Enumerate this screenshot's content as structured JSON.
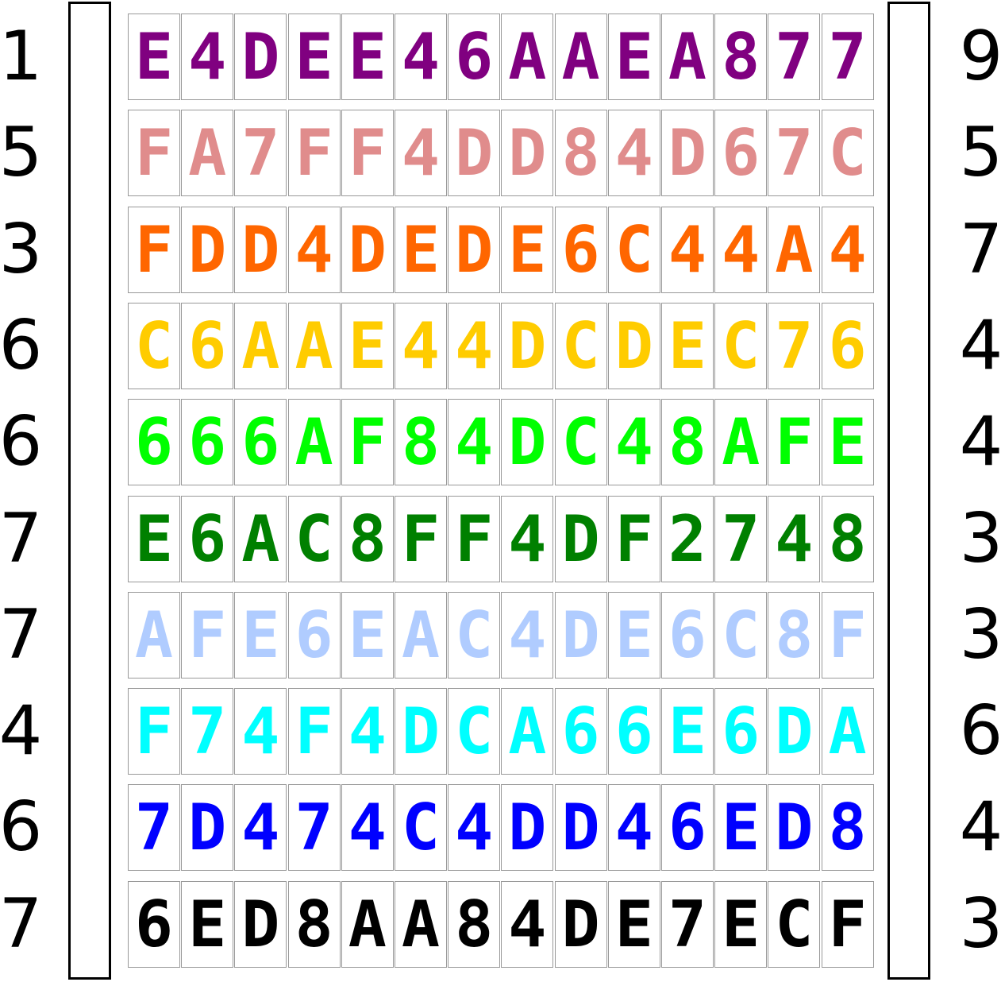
{
  "left_numbers": [
    "1",
    "5",
    "3",
    "6",
    "6",
    "7",
    "7",
    "4",
    "6",
    "7"
  ],
  "right_numbers": [
    "9",
    "5",
    "7",
    "4",
    "4",
    "3",
    "3",
    "6",
    "4",
    "3"
  ],
  "rows": [
    {
      "color": "#800080",
      "chars": [
        "E",
        "4",
        "D",
        "E",
        "E",
        "4",
        "6",
        "A",
        "A",
        "E",
        "A",
        "8",
        "7",
        "7"
      ]
    },
    {
      "color": "#e08c8c",
      "chars": [
        "F",
        "A",
        "7",
        "F",
        "F",
        "4",
        "D",
        "D",
        "8",
        "4",
        "D",
        "6",
        "7",
        "C"
      ]
    },
    {
      "color": "#ff6600",
      "chars": [
        "F",
        "D",
        "D",
        "4",
        "D",
        "E",
        "D",
        "E",
        "6",
        "C",
        "4",
        "4",
        "A",
        "4"
      ]
    },
    {
      "color": "#ffcc00",
      "chars": [
        "C",
        "6",
        "A",
        "A",
        "E",
        "4",
        "4",
        "D",
        "C",
        "D",
        "E",
        "C",
        "7",
        "6"
      ]
    },
    {
      "color": "#00ff00",
      "chars": [
        "6",
        "6",
        "6",
        "A",
        "F",
        "8",
        "4",
        "D",
        "C",
        "4",
        "8",
        "A",
        "F",
        "E"
      ]
    },
    {
      "color": "#008000",
      "chars": [
        "E",
        "6",
        "A",
        "C",
        "8",
        "F",
        "F",
        "4",
        "D",
        "F",
        "2",
        "7",
        "4",
        "8"
      ]
    },
    {
      "color": "#b0ccff",
      "chars": [
        "A",
        "F",
        "E",
        "6",
        "E",
        "A",
        "C",
        "4",
        "D",
        "E",
        "6",
        "C",
        "8",
        "F"
      ]
    },
    {
      "color": "#00ffff",
      "chars": [
        "F",
        "7",
        "4",
        "F",
        "4",
        "D",
        "C",
        "A",
        "6",
        "6",
        "E",
        "6",
        "D",
        "A"
      ]
    },
    {
      "color": "#0000ff",
      "chars": [
        "7",
        "D",
        "4",
        "7",
        "4",
        "C",
        "4",
        "D",
        "D",
        "4",
        "6",
        "E",
        "D",
        "8"
      ]
    },
    {
      "color": "#000000",
      "chars": [
        "6",
        "E",
        "D",
        "8",
        "A",
        "A",
        "8",
        "4",
        "D",
        "E",
        "7",
        "E",
        "C",
        "F"
      ]
    }
  ]
}
